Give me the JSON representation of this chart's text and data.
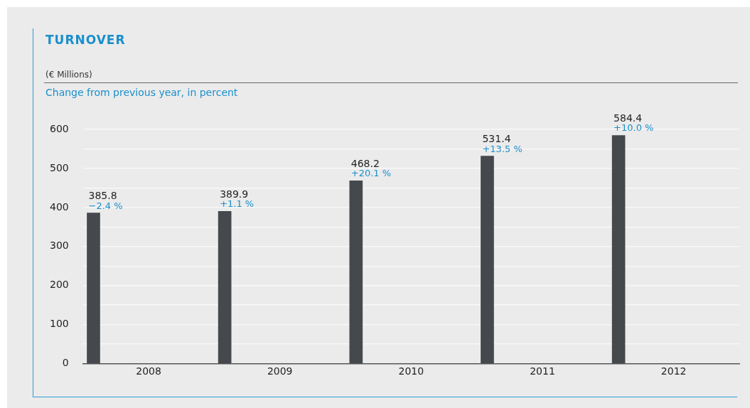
{
  "chart_data": {
    "type": "bar",
    "title": "TURNOVER",
    "subtitle": "(€ Millions)",
    "annotations": [
      "Change from previous year, in percent",
      "−2.4 %",
      "+1.1 %",
      "+20.1 %",
      "+13.5 %",
      "+10.0 %"
    ],
    "categories": [
      "2008",
      "2009",
      "2010",
      "2011",
      "2012"
    ],
    "values": [
      385.8,
      389.9,
      468.2,
      531.4,
      584.4
    ],
    "color": "#45484c",
    "ylim": [
      0,
      600
    ],
    "yticks": [
      0,
      {
        "value": 50,
        "label": null
      },
      100,
      {
        "value": 150,
        "label": null
      },
      200,
      {
        "value": 250,
        "label": null
      },
      300,
      {
        "value": 350,
        "label": null
      },
      400,
      {
        "value": 450,
        "label": null
      },
      500,
      {
        "value": 550,
        "label": null
      },
      600
    ],
    "grid": "y",
    "data_labels": true,
    "legend": false
  }
}
